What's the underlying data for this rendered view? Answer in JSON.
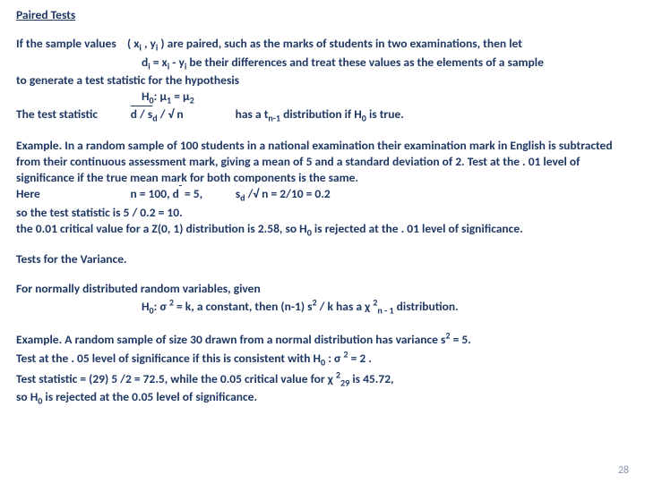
{
  "title": "Paired Tests",
  "p1a": "If the sample values    ( x",
  "p1a2": " , y",
  "p1a3": " ) are paired, such as the marks of students in two examinations, then let",
  "p1b": "d",
  "p1b2": " = x",
  "p1b3": " - y",
  "p1b4": " be their differences and treat these values as the elements of a sample",
  "p1c": "to generate a test statistic for the hypothesis",
  "p1d": "H",
  "p1d2": ": ",
  "mu": "μ",
  "p1d3": "  =  ",
  "p1e": "The test statistic",
  "p1e2": "d / s",
  "p1e3": " / √ n",
  "p1e4": "has a t",
  "p1e5": " distribution if  H",
  "p1e6": " is true.",
  "p2a": "Example. In a random sample of 100 students in a national examination their examination mark in English is subtracted  from their continuous assessment mark, giving a mean of 5 and a standard deviation of 2. Test at the . 01 level of significance if the true mean mark for both components is the same.",
  "p2b": "Here",
  "p2b2": "n = 100,  d",
  "p2b2b": " = 5,",
  "p2b3": "s",
  "p2b4": " /√ n   = 2/10 = 0.2",
  "p2c": "so the test statistic is  5 / 0.2 = 10.",
  "p2d": "the 0.01 critical value for a Z(0, 1) distribution is 2.58, so H",
  "p2d2": " is rejected at the . 01 level of significance.",
  "heading2": "Tests for the Variance.",
  "p3a": "For normally distributed random variables, given",
  "p3b": "H",
  "p3b2": ": ",
  "sigma": "σ",
  "p3b3": " = k, a constant,    then    (n-1) s",
  "p3b4": " / k      has a ",
  "chi": "χ",
  "p3b5": " distribution.",
  "p4a": "Example. A random sample of size 30 drawn from a normal distribution has variance s",
  "p4a2": "= 5.",
  "p4b": "Test at the . 05 level of significance if this is consistent with H",
  "p4b2": " : ",
  "p4b3": " = 2 .",
  "p4c": "Test statistic = (29) 5 /2 = 72.5, while the 0.05 critical value for ",
  "p4c2": " is 45.72,",
  "p4d": "so H",
  "p4d2": " is rejected at the 0.05 level of significance.",
  "pagenum": "28",
  "i": "i",
  "zero": "0",
  "one": "1",
  "two": "2",
  "d": "d",
  "nm1": "n-1",
  "n1": "n - 1",
  "twentynine": "29"
}
